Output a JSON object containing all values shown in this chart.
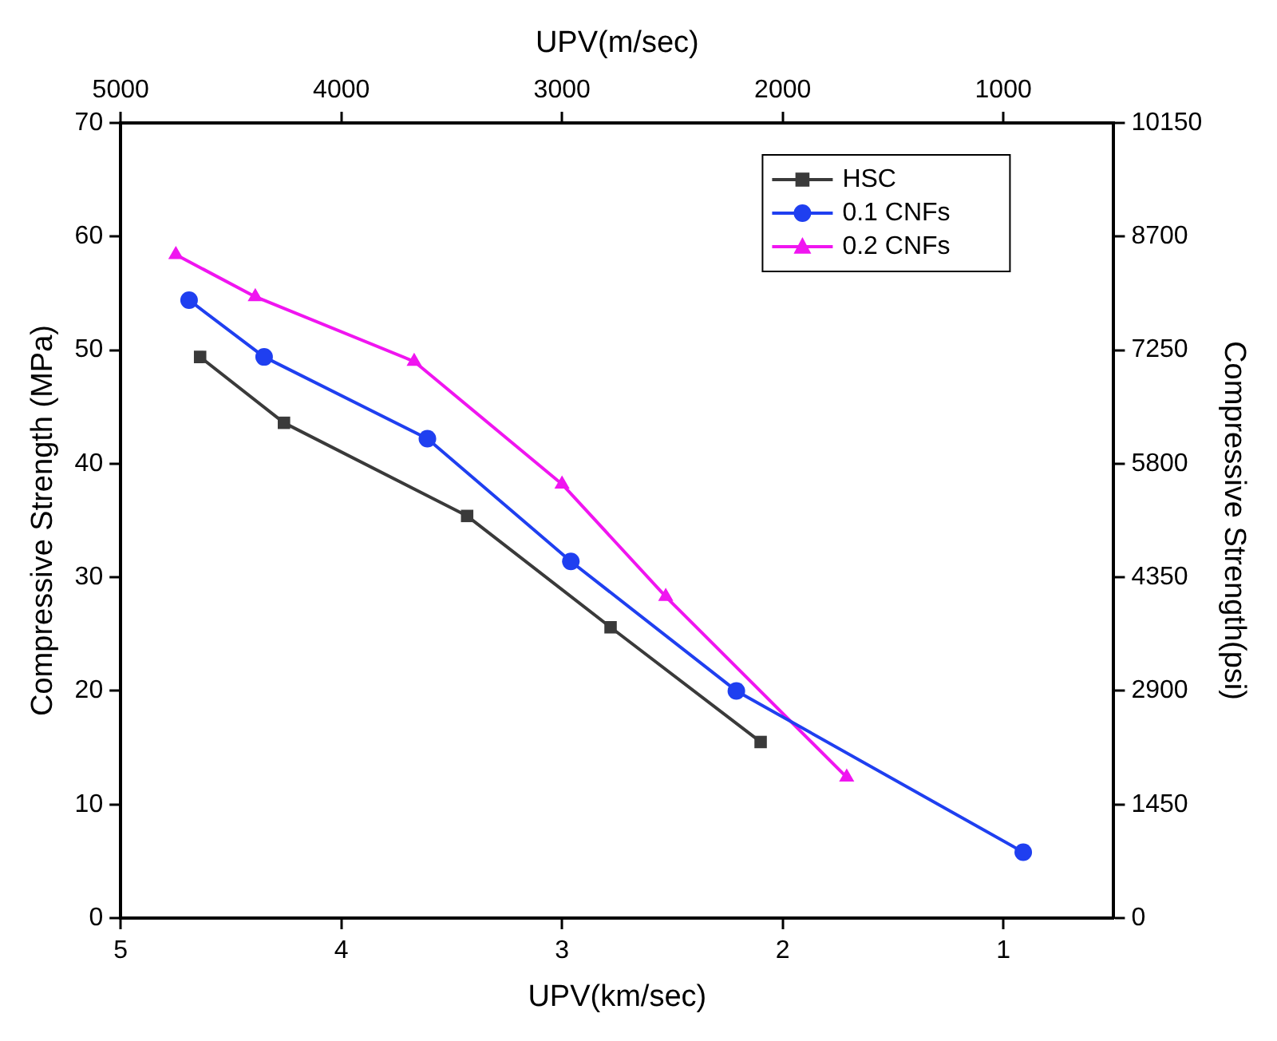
{
  "chart_data": {
    "type": "line",
    "xlabel": "UPV(km/sec)",
    "x2label": "UPV(m/sec)",
    "ylabel": "Compressive Strength (MPa)",
    "y2label": "Compressive Strength(psi)",
    "xlim": [
      5,
      0.5
    ],
    "xticks": [
      5,
      4,
      3,
      2,
      1
    ],
    "x2lim": [
      5000,
      500
    ],
    "x2ticks": [
      5000,
      4000,
      3000,
      2000,
      1000
    ],
    "ylim": [
      0,
      70
    ],
    "yticks": [
      0,
      10,
      20,
      30,
      40,
      50,
      60,
      70
    ],
    "y2lim": [
      0,
      10150
    ],
    "y2ticks": [
      0,
      1450,
      2900,
      4350,
      5800,
      7250,
      8700,
      10150
    ],
    "grid": false,
    "legend": "top right",
    "line_style": "solid",
    "series": [
      {
        "name": "HSC",
        "color": "#3a3a3a",
        "marker": "square",
        "x": [
          4.64,
          4.26,
          3.43,
          2.78,
          2.1
        ],
        "values": [
          49.4,
          43.6,
          35.4,
          25.6,
          15.5
        ]
      },
      {
        "name": "0.1 CNFs",
        "color": "#1f3ff0",
        "marker": "circle",
        "x": [
          4.69,
          4.35,
          3.61,
          2.96,
          2.21,
          0.91
        ],
        "values": [
          54.4,
          49.4,
          42.2,
          31.4,
          20.0,
          5.8
        ]
      },
      {
        "name": "0.2 CNFs",
        "color": "#f015f0",
        "marker": "triangle",
        "x": [
          4.75,
          4.39,
          3.67,
          3.0,
          2.53,
          1.71
        ],
        "values": [
          58.4,
          54.7,
          49.0,
          38.2,
          28.3,
          12.4
        ]
      }
    ]
  }
}
